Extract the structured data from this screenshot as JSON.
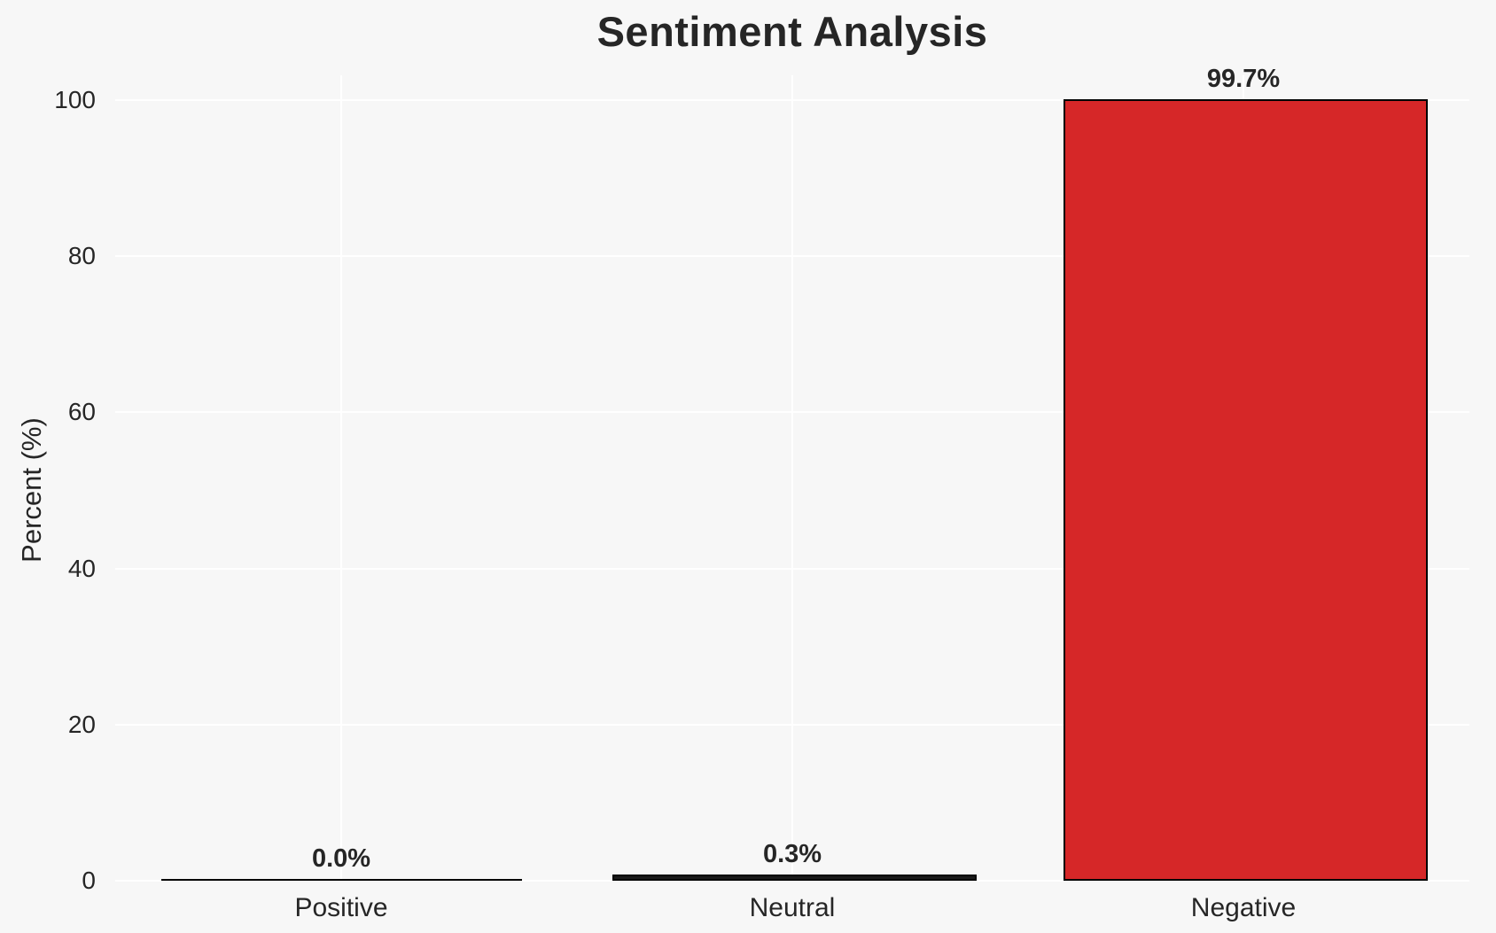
{
  "chart_data": {
    "type": "bar",
    "title": "Sentiment Analysis",
    "xlabel": "",
    "ylabel": "Percent (%)",
    "categories": [
      "Positive",
      "Neutral",
      "Negative"
    ],
    "values": [
      0.0,
      0.3,
      99.7
    ],
    "value_labels": [
      "0.0%",
      "0.3%",
      "99.7%"
    ],
    "yticks": [
      0,
      20,
      40,
      60,
      80,
      100
    ],
    "ylim": [
      0,
      100
    ],
    "grid": true,
    "legend": "none",
    "colors": {
      "background": "#f7f7f7",
      "gridline": "#ffffff",
      "text": "#262626",
      "bar_fills": [
        "#f7f7f7",
        "#1a1a1a",
        "#d62728"
      ],
      "bar_edge": "#000000"
    }
  }
}
